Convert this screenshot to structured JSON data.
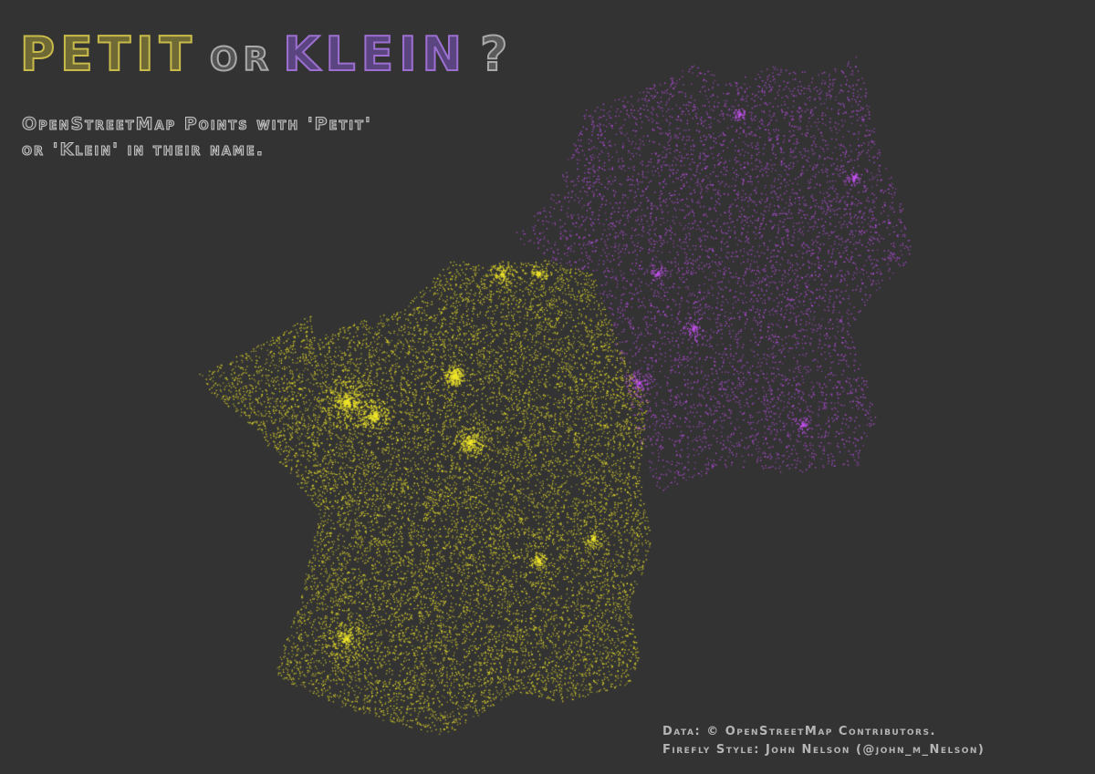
{
  "title": {
    "part1": "PETIT",
    "part2": "OR",
    "part3": "KLEIN",
    "part4": "?"
  },
  "subtitle": {
    "line1": "OpenStreetMap Points with 'Petit'",
    "line2": "or 'Klein' in their name."
  },
  "credits": {
    "line1": "Data: © OpenStreetMap Contributors.",
    "line2": "Firefly Style: John Nelson (@john_m_Nelson)"
  },
  "map": {
    "background": "#333333",
    "layers": [
      {
        "term": "Petit",
        "color": "#f0e62a"
      },
      {
        "term": "Klein",
        "color": "#c451f0"
      }
    ]
  }
}
